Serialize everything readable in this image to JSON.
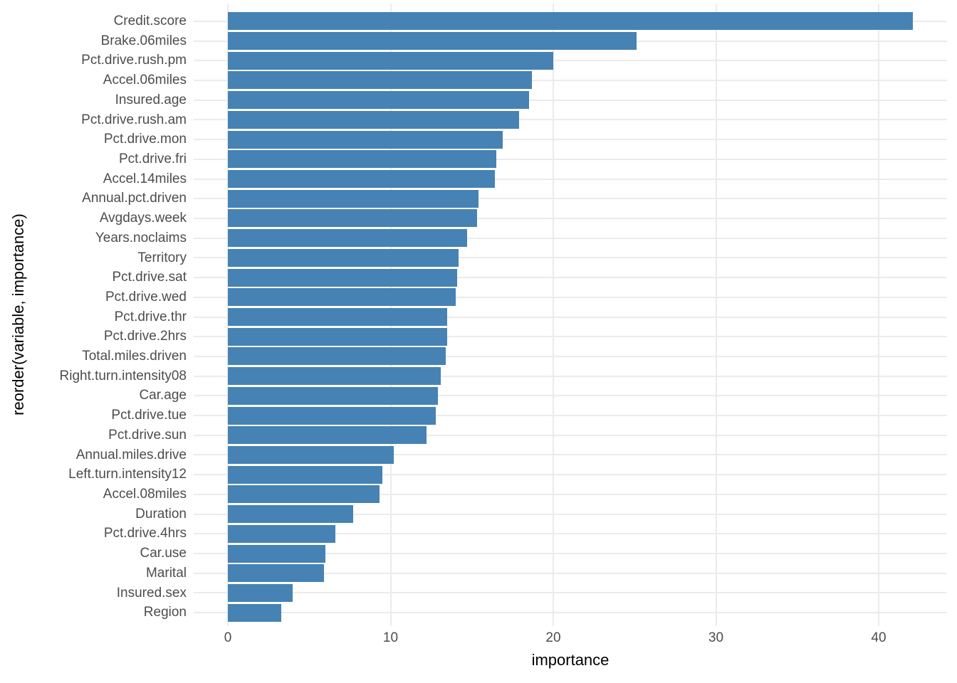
{
  "chart_data": {
    "type": "bar",
    "orientation": "horizontal",
    "title": "",
    "xlabel": "importance",
    "ylabel": "reorder(variable, importance)",
    "x_ticks": [
      0,
      10,
      20,
      30,
      40
    ],
    "xlim": [
      0,
      44.2
    ],
    "grid": "major gridlines only, light gray on white",
    "legend": false,
    "categories": [
      "Credit.score",
      "Brake.06miles",
      "Pct.drive.rush.pm",
      "Accel.06miles",
      "Insured.age",
      "Pct.drive.rush.am",
      "Pct.drive.mon",
      "Pct.drive.fri",
      "Accel.14miles",
      "Annual.pct.driven",
      "Avgdays.week",
      "Years.noclaims",
      "Territory",
      "Pct.drive.sat",
      "Pct.drive.wed",
      "Pct.drive.thr",
      "Pct.drive.2hrs",
      "Total.miles.driven",
      "Right.turn.intensity08",
      "Car.age",
      "Pct.drive.tue",
      "Pct.drive.sun",
      "Annual.miles.drive",
      "Left.turn.intensity12",
      "Accel.08miles",
      "Duration",
      "Pct.drive.4hrs",
      "Car.use",
      "Marital",
      "Insured.sex",
      "Region"
    ],
    "values": [
      42.1,
      25.1,
      20.0,
      18.7,
      18.5,
      17.9,
      16.9,
      16.5,
      16.4,
      15.4,
      15.3,
      14.7,
      14.2,
      14.1,
      14.0,
      13.5,
      13.5,
      13.4,
      13.1,
      12.9,
      12.8,
      12.2,
      10.2,
      9.5,
      9.3,
      7.7,
      6.6,
      6.0,
      5.9,
      4.0,
      3.3
    ]
  },
  "colors": {
    "bar_fill": "#4682B4",
    "background": "#FFFFFF",
    "gridline": "#EBEBEB",
    "tick_label": "#4D4D4D",
    "axis_title": "#000000"
  }
}
